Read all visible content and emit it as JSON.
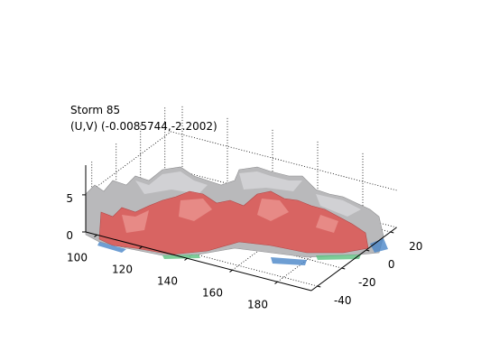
{
  "chart_data": {
    "type": "surface3d",
    "title": "Storm 85",
    "subtitle": "(U,V) (-0.0085744,-2.2002)",
    "xlim": [
      95,
      195
    ],
    "xticks": [
      100,
      120,
      140,
      160,
      180
    ],
    "ylim": [
      -45,
      25
    ],
    "yticks": [
      -40,
      -20,
      0,
      20
    ],
    "zlim": [
      0,
      9
    ],
    "zticks": [
      0,
      5
    ],
    "grid": true
  }
}
